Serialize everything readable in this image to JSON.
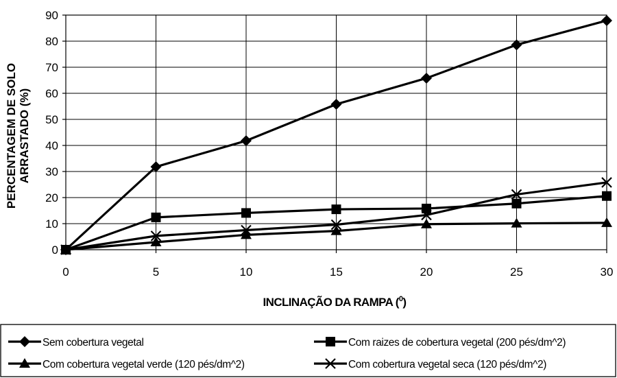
{
  "chart_data": {
    "type": "line",
    "x": [
      0,
      5,
      10,
      15,
      20,
      25,
      30
    ],
    "xlim": [
      0,
      30
    ],
    "ylim": [
      0,
      90
    ],
    "x_ticks": [
      "0",
      "5",
      "10",
      "15",
      "20",
      "25",
      "30"
    ],
    "y_ticks": [
      "0",
      "10",
      "20",
      "30",
      "40",
      "50",
      "60",
      "70",
      "80",
      "90"
    ],
    "xlabel": {
      "main": "INCLINAÇÃO DA RAMPA (",
      "sup": "0",
      "end": ")"
    },
    "ylabel": [
      "PERCENTAGEM DE SOLO",
      "ARRASTADO (%)"
    ],
    "grid": true,
    "legend_position": "bottom",
    "series": [
      {
        "name": "Sem cobertura vegetal",
        "marker": "diamond",
        "values": [
          0,
          31.8,
          41.8,
          55.8,
          65.8,
          78.6,
          87.9
        ]
      },
      {
        "name": "Com raizes de cobertura vegetal (200 pés/dm^2)",
        "marker": "square",
        "values": [
          0,
          12.4,
          14.1,
          15.5,
          15.8,
          17.7,
          20.6
        ]
      },
      {
        "name": "Com cobertura vegetal verde (120 pés/dm^2)",
        "marker": "triangle",
        "values": [
          0,
          2.9,
          5.7,
          7.2,
          9.8,
          10.1,
          10.3
        ]
      },
      {
        "name": "Com cobertura vegetal seca (120 pés/dm^2)",
        "marker": "x",
        "values": [
          0,
          5.3,
          7.5,
          9.6,
          13.3,
          21.2,
          25.8
        ]
      }
    ],
    "line_color": "#000000",
    "grid_color": "#000000"
  }
}
